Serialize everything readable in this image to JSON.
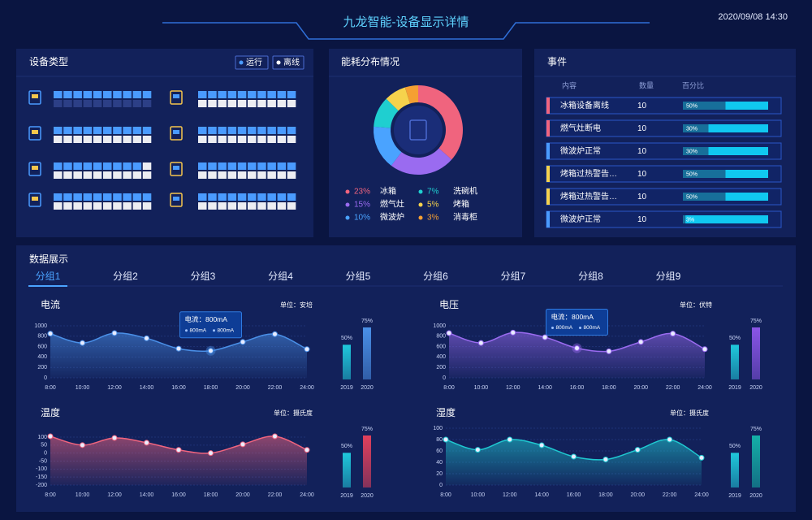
{
  "header": {
    "title": "九龙智能-设备显示详情",
    "datetime": "2020/09/08  14:30"
  },
  "device_panel": {
    "title": "设备类型",
    "legend": [
      {
        "label": "运行",
        "color": "#4a9bff"
      },
      {
        "label": "离线",
        "color": "#ffffff"
      }
    ],
    "devices": [
      {
        "running": 10,
        "offline": 0
      },
      {
        "running": 10,
        "offline": 10
      },
      {
        "running": 9,
        "offline": 11
      },
      {
        "running": 10,
        "offline": 10
      },
      {
        "running": 10,
        "offline": 10
      },
      {
        "running": 10,
        "offline": 10
      },
      {
        "running": 10,
        "offline": 10
      },
      {
        "running": 10,
        "offline": 10
      }
    ]
  },
  "energy_panel": {
    "title": "能耗分布情况",
    "chart": {
      "type": "pie",
      "categories": [
        "冰箱",
        "燃气灶",
        "微波炉",
        "洗碗机",
        "烤箱",
        "消毒柜"
      ],
      "values": [
        23,
        15,
        10,
        7,
        5,
        3
      ],
      "value_labels": [
        "23%",
        "15%",
        "10%",
        "7%",
        "5%",
        "3%"
      ],
      "colors": [
        "#f0647e",
        "#9a6bf0",
        "#4aa3ff",
        "#1fcfd0",
        "#f6d24c",
        "#f5a033"
      ]
    }
  },
  "event_panel": {
    "title": "事件",
    "columns": [
      "内容",
      "数量",
      "百分比"
    ],
    "rows": [
      {
        "name": "冰箱设备离线",
        "count": 10,
        "percent": 50,
        "percent_label": "50%",
        "color": "#f0647e"
      },
      {
        "name": "燃气灶断电",
        "count": 10,
        "percent": 30,
        "percent_label": "30%",
        "color": "#f0647e"
      },
      {
        "name": "微波炉正常",
        "count": 10,
        "percent": 30,
        "percent_label": "30%",
        "color": "#4a9bff"
      },
      {
        "name": "烤箱过热警告…",
        "count": 10,
        "percent": 50,
        "percent_label": "50%",
        "color": "#f6d24c"
      },
      {
        "name": "烤箱过热警告…",
        "count": 10,
        "percent": 50,
        "percent_label": "50%",
        "color": "#f6d24c"
      },
      {
        "name": "微波炉正常",
        "count": 10,
        "percent": 3,
        "percent_label": "3%",
        "color": "#4a9bff"
      }
    ]
  },
  "data_panel": {
    "title": "数据展示",
    "tabs": [
      "分组1",
      "分组2",
      "分组3",
      "分组4",
      "分组5",
      "分组6",
      "分组7",
      "分组8",
      "分组9"
    ],
    "charts": [
      {
        "type": "line",
        "title": "电流",
        "unit": "单位：安培",
        "color": "#4a90e8",
        "categories": [
          "8:00",
          "10:00",
          "12:00",
          "14:00",
          "16:00",
          "18:00",
          "20:00",
          "22:00",
          "24:00"
        ],
        "values": [
          850,
          670,
          860,
          760,
          560,
          520,
          690,
          840,
          550
        ],
        "ylim": [
          0,
          1000
        ],
        "yticks": [
          0,
          200,
          400,
          600,
          800,
          1000
        ],
        "tooltip": {
          "title": "电流：800mA",
          "items": [
            "800mA",
            "800mA"
          ]
        },
        "bars": {
          "type": "bar",
          "categories": [
            "2019",
            "2020"
          ],
          "values": [
            50,
            75
          ],
          "value_labels": [
            "50%",
            "75%"
          ],
          "colors": [
            "#1fc8dc",
            "#4a90e8"
          ]
        }
      },
      {
        "type": "line",
        "title": "电压",
        "unit": "单位：伏特",
        "color": "#9a6bf0",
        "categories": [
          "8:00",
          "10:00",
          "12:00",
          "14:00",
          "16:00",
          "18:00",
          "20:00",
          "22:00",
          "24:00"
        ],
        "values": [
          860,
          670,
          870,
          780,
          570,
          510,
          690,
          850,
          550
        ],
        "ylim": [
          0,
          1000
        ],
        "yticks": [
          0,
          200,
          400,
          600,
          800,
          1000
        ],
        "tooltip": {
          "title": "电流：800mA",
          "items": [
            "800mA",
            "800mA"
          ]
        },
        "bars": {
          "type": "bar",
          "categories": [
            "2019",
            "2020"
          ],
          "values": [
            50,
            75
          ],
          "value_labels": [
            "50%",
            "75%"
          ],
          "colors": [
            "#1fc8dc",
            "#8a55e8"
          ]
        }
      },
      {
        "type": "line",
        "title": "温度",
        "unit": "单位：摄氏度",
        "color": "#f0647e",
        "categories": [
          "8:00",
          "10:00",
          "12:00",
          "14:00",
          "16:00",
          "18:00",
          "20:00",
          "22:00",
          "24:00"
        ],
        "values": [
          105,
          50,
          95,
          65,
          20,
          0,
          55,
          105,
          20
        ],
        "ylim": [
          -200,
          100
        ],
        "yticks": [
          -200,
          -150,
          -100,
          -50,
          0,
          50,
          100
        ],
        "bars": {
          "type": "bar",
          "categories": [
            "2019",
            "2020"
          ],
          "values": [
            50,
            75
          ],
          "value_labels": [
            "50%",
            "75%"
          ],
          "colors": [
            "#1fc8dc",
            "#e0405c"
          ]
        }
      },
      {
        "type": "line",
        "title": "湿度",
        "unit": "单位：摄氏度",
        "color": "#1fc8d0",
        "categories": [
          "8:00",
          "10:00",
          "12:00",
          "14:00",
          "16:00",
          "18:00",
          "20:00",
          "22:00",
          "24:00"
        ],
        "values": [
          80,
          62,
          80,
          70,
          50,
          45,
          62,
          80,
          48
        ],
        "ylim": [
          0,
          100
        ],
        "yticks": [
          0,
          20,
          40,
          60,
          80,
          100
        ],
        "bars": {
          "type": "bar",
          "categories": [
            "2019",
            "2020"
          ],
          "values": [
            50,
            75
          ],
          "value_labels": [
            "50%",
            "75%"
          ],
          "colors": [
            "#1fc8dc",
            "#14b0a8"
          ]
        }
      }
    ]
  }
}
